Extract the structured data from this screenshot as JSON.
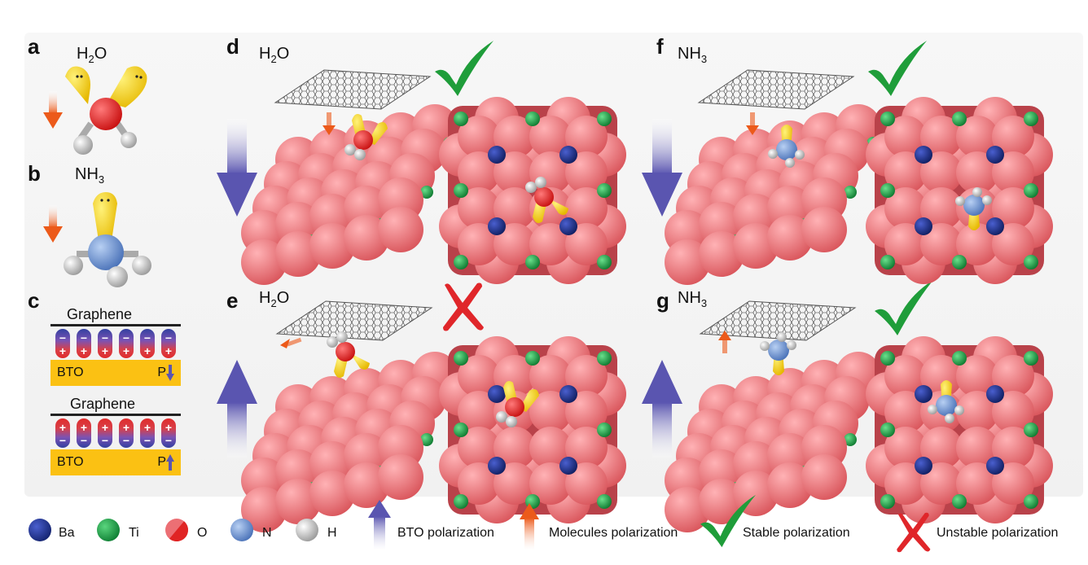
{
  "panels": {
    "a": "a",
    "b": "b",
    "c": "c",
    "d": "d",
    "e": "e",
    "f": "f",
    "g": "g"
  },
  "molecules": {
    "h2o": {
      "main": "H",
      "sub": "2",
      "tail": "O"
    },
    "nh3": {
      "main": "NH",
      "sub": "3"
    }
  },
  "panel_c": {
    "graphene_label": "Graphene",
    "bto_label": "BTO",
    "p_label": "P",
    "plus": "+",
    "minus": "−"
  },
  "legend": {
    "ba": "Ba",
    "ti": "Ti",
    "o": "O",
    "n": "N",
    "h": "H",
    "bto_polarization": "BTO polarization",
    "molecules_polarization": "Molecules polarization",
    "stable": "Stable polarization",
    "unstable": "Unstable polarization"
  },
  "colors": {
    "ba": "#1e2f8a",
    "ti": "#17a34a",
    "o": "#e02424",
    "n": "#6a93d0",
    "h": "#c8c8c8",
    "lone_pair": "#f6d11a",
    "bto_arrow": "#6c6ab8",
    "molecule_arrow": "#ec6a2a",
    "check": "#1f9d3a",
    "cross": "#e0262a",
    "substrate": "#ec6f74"
  }
}
